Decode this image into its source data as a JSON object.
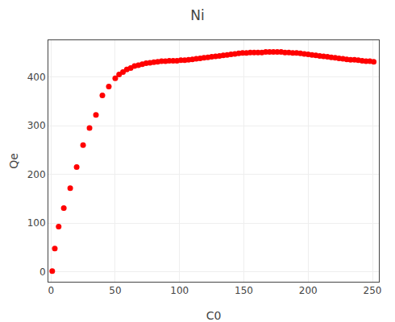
{
  "chart_data": {
    "type": "scatter",
    "title": "Ni",
    "xlabel": "C0",
    "ylabel": "Qe",
    "x": [
      1,
      3,
      6,
      10,
      15,
      20,
      25,
      30,
      35,
      40,
      45,
      50,
      53,
      56,
      59,
      62,
      65,
      68,
      71,
      74,
      77,
      80,
      83,
      86,
      89,
      92,
      95,
      98,
      101,
      104,
      107,
      110,
      113,
      116,
      119,
      122,
      125,
      128,
      131,
      134,
      137,
      140,
      143,
      146,
      149,
      152,
      155,
      158,
      161,
      164,
      167,
      170,
      173,
      176,
      179,
      182,
      185,
      188,
      191,
      194,
      197,
      200,
      203,
      206,
      209,
      212,
      215,
      218,
      221,
      224,
      227,
      230,
      233,
      236,
      239,
      242,
      245,
      248,
      251
    ],
    "values": [
      2,
      48,
      93,
      131,
      172,
      215,
      260,
      295,
      322,
      362,
      380,
      397,
      405,
      410,
      415,
      418,
      422,
      424,
      426,
      428,
      429,
      430,
      431,
      432,
      432,
      433,
      433,
      433,
      434,
      434,
      435,
      436,
      437,
      438,
      439,
      440,
      441,
      442,
      443,
      444,
      445,
      446,
      447,
      448,
      449,
      449,
      450,
      450,
      450,
      450,
      451,
      451,
      451,
      451,
      451,
      450,
      450,
      449,
      449,
      448,
      447,
      446,
      445,
      444,
      443,
      442,
      441,
      440,
      439,
      438,
      437,
      436,
      435,
      435,
      434,
      433,
      432,
      432,
      431
    ],
    "color": "#ff0000",
    "xlim": [
      -2,
      255
    ],
    "ylim": [
      -20,
      475
    ],
    "xticks": [
      0,
      50,
      100,
      150,
      200,
      250
    ],
    "yticks": [
      0,
      100,
      200,
      300,
      400
    ],
    "grid": true
  }
}
